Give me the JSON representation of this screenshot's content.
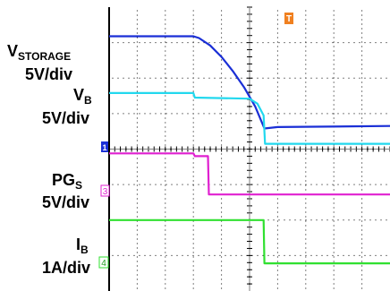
{
  "labels": {
    "vstorage": {
      "main": "V",
      "sub": "STORAGE",
      "scale": "5V/div"
    },
    "vb": {
      "main": "V",
      "sub": "B",
      "scale": "5V/div"
    },
    "pgs": {
      "main": "PG",
      "sub": "S",
      "scale": "5V/div"
    },
    "ib": {
      "main": "I",
      "sub": "B",
      "scale": "1A/div"
    }
  },
  "markers": {
    "ch1": "1",
    "ch3": "3",
    "ch4": "4",
    "trigger": "T"
  },
  "colors": {
    "vstorage": "#1a2fd6",
    "vb": "#22d8ee",
    "pgs": "#e020d0",
    "ib": "#30e030",
    "grid": "#000000",
    "trigger": "#f08020"
  },
  "chart_data": {
    "type": "line",
    "xlabel": "",
    "ylabel": "",
    "x_divisions": 10,
    "y_divisions": 8,
    "xlim": [
      0,
      10
    ],
    "ylim": [
      -4,
      4
    ],
    "grid": true,
    "series": [
      {
        "key": "vstorage",
        "x": [
          0,
          3,
          3.2,
          3.6,
          4.0,
          4.4,
          4.8,
          5.2,
          5.53,
          6,
          10
        ],
        "y": [
          3.18,
          3.18,
          3.13,
          2.92,
          2.6,
          2.2,
          1.75,
          1.2,
          0.58,
          0.62,
          0.65
        ]
      },
      {
        "key": "vb",
        "x": [
          0,
          3,
          3.05,
          5.0,
          5.28,
          5.5,
          5.55,
          10
        ],
        "y": [
          1.58,
          1.58,
          1.45,
          1.42,
          1.28,
          0.95,
          0.15,
          0.15
        ]
      },
      {
        "key": "pgs",
        "x": [
          0,
          3.0,
          3.05,
          3.52,
          3.55,
          10
        ],
        "y": [
          -0.12,
          -0.12,
          -0.2,
          -0.2,
          -1.28,
          -1.28
        ]
      },
      {
        "key": "ib",
        "x": [
          0,
          5.5,
          5.53,
          10
        ],
        "y": [
          -2.0,
          -2.0,
          -3.22,
          -3.22
        ]
      }
    ]
  }
}
